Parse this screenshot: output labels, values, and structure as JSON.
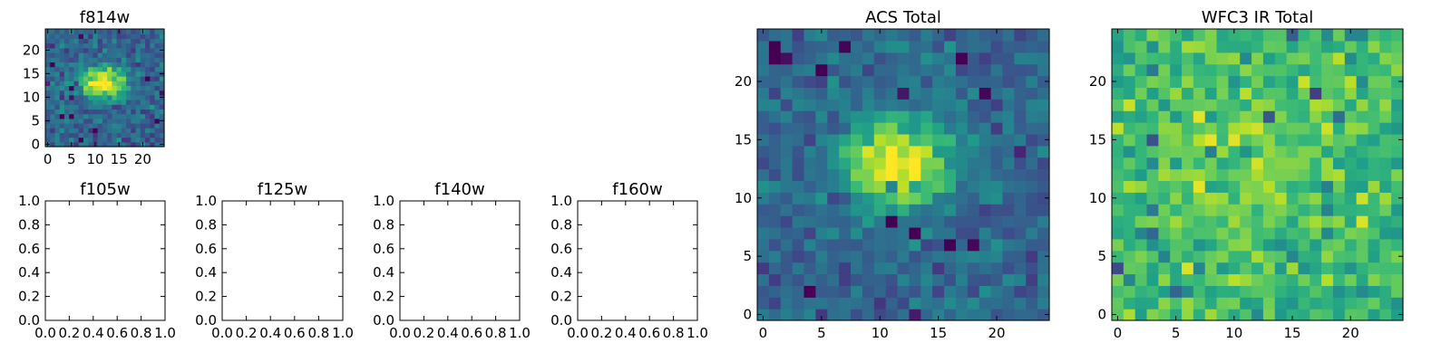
{
  "chart_data": [
    {
      "type": "heatmap",
      "title": "f814w",
      "xlabel": "",
      "ylabel": "",
      "grid": false,
      "shape": [
        25,
        25
      ],
      "colormap": "viridis",
      "xticks": [
        "0",
        "5",
        "10",
        "15",
        "20"
      ],
      "yticks": [
        "0",
        "5",
        "10",
        "15",
        "20"
      ],
      "xlim": [
        -0.5,
        24.5
      ],
      "ylim": [
        -0.5,
        24.5
      ],
      "source": {
        "peak": [
          11.5,
          13.2
        ],
        "sigma": [
          3.6,
          2.4
        ],
        "amplitude": 0.72,
        "noise": 0.17,
        "background": 0.32
      }
    },
    {
      "type": "heatmap",
      "title": "f105w",
      "empty": true,
      "xticks": [
        "0.0",
        "0.2",
        "0.4",
        "0.6",
        "0.8",
        "1.0"
      ],
      "yticks": [
        "0.0",
        "0.2",
        "0.4",
        "0.6",
        "0.8",
        "1.0"
      ],
      "xlim": [
        0,
        1
      ],
      "ylim": [
        0,
        1
      ]
    },
    {
      "type": "heatmap",
      "title": "f125w",
      "empty": true,
      "xticks": [
        "0.0",
        "0.2",
        "0.4",
        "0.6",
        "0.8",
        "1.0"
      ],
      "yticks": [
        "0.0",
        "0.2",
        "0.4",
        "0.6",
        "0.8",
        "1.0"
      ],
      "xlim": [
        0,
        1
      ],
      "ylim": [
        0,
        1
      ]
    },
    {
      "type": "heatmap",
      "title": "f140w",
      "empty": true,
      "xticks": [
        "0.0",
        "0.2",
        "0.4",
        "0.6",
        "0.8",
        "1.0"
      ],
      "yticks": [
        "0.0",
        "0.2",
        "0.4",
        "0.6",
        "0.8",
        "1.0"
      ],
      "xlim": [
        0,
        1
      ],
      "ylim": [
        0,
        1
      ]
    },
    {
      "type": "heatmap",
      "title": "f160w",
      "empty": true,
      "xticks": [
        "0.0",
        "0.2",
        "0.4",
        "0.6",
        "0.8",
        "1.0"
      ],
      "yticks": [
        "0.0",
        "0.2",
        "0.4",
        "0.6",
        "0.8",
        "1.0"
      ],
      "xlim": [
        0,
        1
      ],
      "ylim": [
        0,
        1
      ]
    },
    {
      "type": "heatmap",
      "title": "ACS Total",
      "xlabel": "",
      "ylabel": "",
      "grid": false,
      "shape": [
        25,
        25
      ],
      "colormap": "viridis",
      "xticks": [
        "0",
        "5",
        "10",
        "15",
        "20"
      ],
      "yticks": [
        "0",
        "5",
        "10",
        "15",
        "20"
      ],
      "xlim": [
        -0.5,
        24.5
      ],
      "ylim": [
        -0.5,
        24.5
      ],
      "source": {
        "peak": [
          11.5,
          13.0
        ],
        "sigma": [
          3.4,
          2.6
        ],
        "amplitude": 0.68,
        "noise": 0.15,
        "background": 0.33
      }
    },
    {
      "type": "heatmap",
      "title": "WFC3 IR Total",
      "xlabel": "",
      "ylabel": "",
      "grid": false,
      "shape": [
        25,
        25
      ],
      "colormap": "viridis",
      "xticks": [
        "0",
        "5",
        "10",
        "15",
        "20"
      ],
      "yticks": [
        "0",
        "5",
        "10",
        "15",
        "20"
      ],
      "xlim": [
        -0.5,
        24.5
      ],
      "ylim": [
        -0.5,
        24.5
      ],
      "source": {
        "peak": [
          11.5,
          12.5
        ],
        "sigma": [
          5.0,
          4.0
        ],
        "amplitude": 0.12,
        "noise": 0.2,
        "background": 0.68
      }
    }
  ]
}
